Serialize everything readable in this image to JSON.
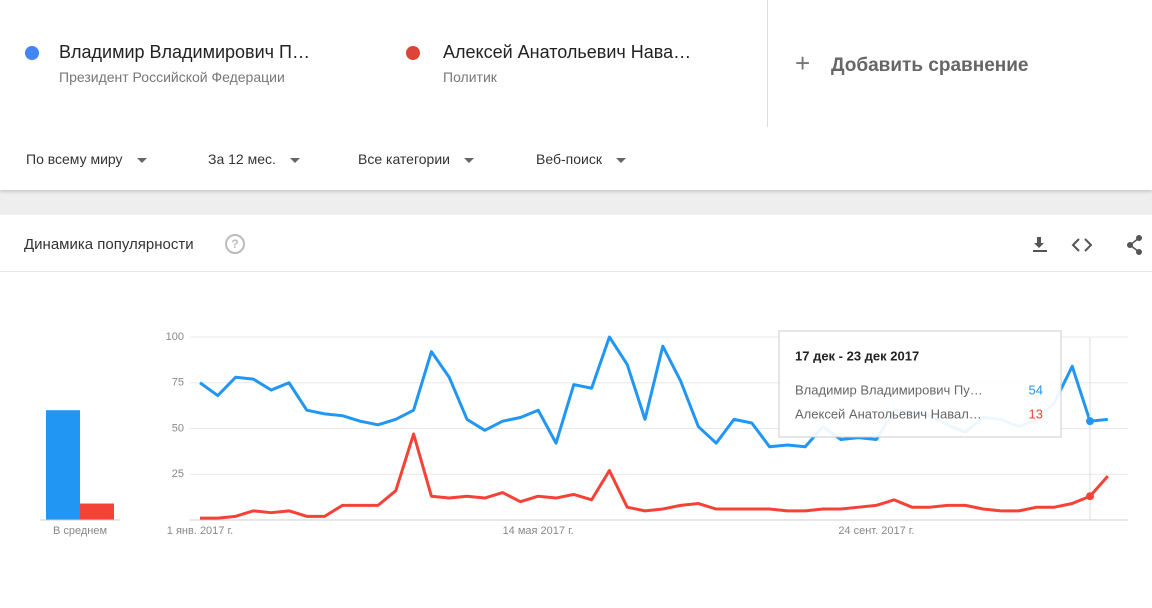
{
  "header": {
    "terms": [
      {
        "subtitle": "Президент Российской Федерации"
      },
      {
        "subtitle": "Политик"
      }
    ],
    "add": "Добавить сравнение"
  },
  "filters": [
    "По всему миру",
    "За 12 мес.",
    "Все категории",
    "Веб-поиск"
  ],
  "panel_title": "Динамика популярности",
  "chart_data": [
    {
      "type": "bar",
      "categories": [
        "В среднем"
      ],
      "ylim": [
        0,
        100
      ],
      "series": [
        {
          "color": "#2196f3",
          "values": [
            60
          ]
        },
        {
          "color": "#f44336",
          "values": [
            9
          ]
        }
      ]
    },
    {
      "type": "line",
      "categories": [
        "1 янв. 2017 г.",
        null,
        null,
        null,
        null,
        null,
        null,
        null,
        null,
        null,
        null,
        null,
        null,
        null,
        null,
        null,
        null,
        null,
        null,
        "14 мая 2017 г.",
        null,
        null,
        null,
        null,
        null,
        null,
        null,
        null,
        null,
        null,
        null,
        null,
        null,
        null,
        null,
        null,
        null,
        null,
        "24 сент. 2017 г.",
        null,
        null,
        null,
        null,
        null,
        null,
        null,
        null,
        null,
        null,
        null,
        null,
        null
      ],
      "series": [
        {
          "name": "Владимир Владимирович П…",
          "color": "#2196f3",
          "values": [
            75,
            68,
            78,
            77,
            71,
            75,
            60,
            58,
            57,
            54,
            52,
            55,
            60,
            92,
            78,
            55,
            49,
            54,
            56,
            60,
            42,
            74,
            72,
            100,
            85,
            55,
            95,
            76,
            51,
            42,
            55,
            53,
            40,
            41,
            40,
            51,
            44,
            45,
            44,
            60,
            59,
            57,
            52,
            48,
            56,
            55,
            51,
            55,
            64,
            84,
            54,
            55
          ]
        },
        {
          "name": "Алексей Анатольевич Нава…",
          "color": "#f44336",
          "values": [
            1,
            1,
            2,
            5,
            4,
            5,
            2,
            2,
            8,
            8,
            8,
            16,
            47,
            13,
            12,
            13,
            12,
            15,
            10,
            13,
            12,
            14,
            11,
            27,
            7,
            5,
            6,
            8,
            9,
            6,
            6,
            6,
            6,
            5,
            5,
            6,
            6,
            7,
            8,
            11,
            7,
            7,
            8,
            8,
            6,
            5,
            5,
            7,
            7,
            9,
            13,
            24
          ]
        }
      ],
      "ylim": [
        0,
        100
      ],
      "yticks": [
        25,
        50,
        75,
        100
      ],
      "grid": true,
      "tooltip": {
        "title": "17 дек - 23 дек 2017",
        "rows": [
          {
            "name": "Владимир Владимирович Пу…",
            "value": 54
          },
          {
            "name": "Алексей Анатольевич Навал…",
            "value": 13
          }
        ]
      }
    }
  ]
}
